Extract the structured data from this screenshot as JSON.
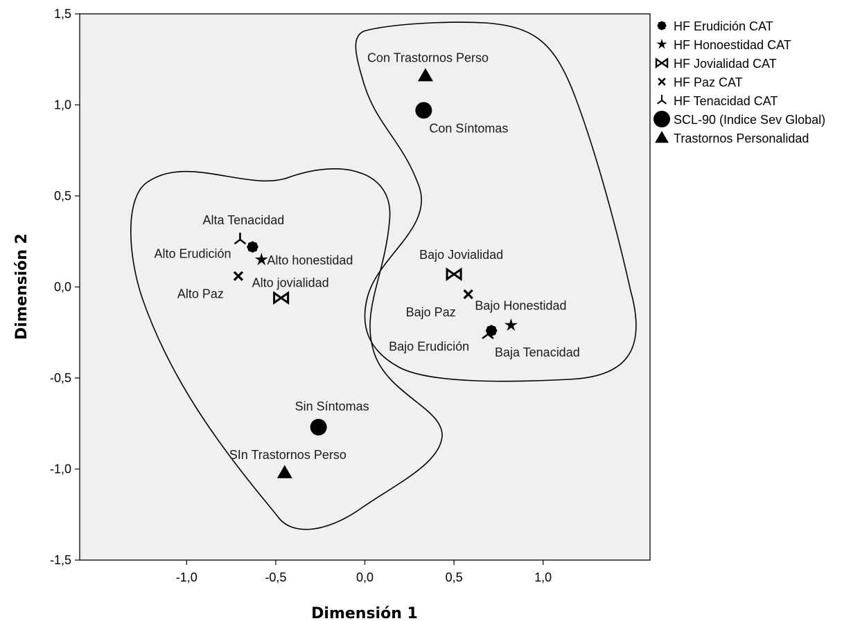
{
  "chart_data": {
    "type": "scatter",
    "xlabel": "Dimensión 1",
    "ylabel": "Dimensión 2",
    "xlim": [
      -1.6,
      1.6
    ],
    "ylim": [
      -1.5,
      1.5
    ],
    "x_ticks": [
      "-1,0",
      "-0,5",
      "0,0",
      "0,5",
      "1,0"
    ],
    "y_ticks": [
      "1,5",
      "1,0",
      "0,5",
      "0,0",
      "-0,5",
      "-1,0",
      "-1,5"
    ],
    "grid": false,
    "legend_position": "right",
    "series": [
      {
        "name": "HF Erudición CAT",
        "marker": "flower",
        "points": [
          {
            "x": -0.63,
            "y": 0.22,
            "label": "Alto Erudición"
          },
          {
            "x": 0.71,
            "y": -0.24,
            "label": "Bajo Erudición"
          }
        ]
      },
      {
        "name": "HF Honoestidad CAT",
        "marker": "star",
        "points": [
          {
            "x": -0.58,
            "y": 0.15,
            "label": "Alto honestidad"
          },
          {
            "x": 0.82,
            "y": -0.21,
            "label": "Bajo Honestidad"
          }
        ]
      },
      {
        "name": "HF Jovialidad CAT",
        "marker": "bowtie",
        "points": [
          {
            "x": -0.47,
            "y": -0.06,
            "label": "Alto jovialidad"
          },
          {
            "x": 0.5,
            "y": 0.07,
            "label": "Bajo Jovialidad"
          }
        ]
      },
      {
        "name": "HF Paz CAT",
        "marker": "cross",
        "points": [
          {
            "x": -0.71,
            "y": 0.06,
            "label": "Alto Paz"
          },
          {
            "x": 0.58,
            "y": -0.04,
            "label": "Bajo Paz"
          }
        ]
      },
      {
        "name": "HF Tenacidad CAT",
        "marker": "tri",
        "points": [
          {
            "x": -0.7,
            "y": 0.26,
            "label": "Alta Tenacidad"
          },
          {
            "x": 0.69,
            "y": -0.26,
            "label": "Baja Tenacidad"
          }
        ]
      },
      {
        "name": "SCL-90 (Indice Sev Global)",
        "marker": "circle",
        "points": [
          {
            "x": 0.33,
            "y": 0.97,
            "label": "Con Síntomas"
          },
          {
            "x": -0.26,
            "y": -0.77,
            "label": "Sin Síntomas"
          }
        ]
      },
      {
        "name": "Trastornos Personalidad",
        "marker": "triangle",
        "points": [
          {
            "x": 0.34,
            "y": 1.16,
            "label": "Con Trastornos Perso"
          },
          {
            "x": -0.45,
            "y": -1.02,
            "label": "SIn Trastornos Perso"
          }
        ]
      }
    ]
  }
}
